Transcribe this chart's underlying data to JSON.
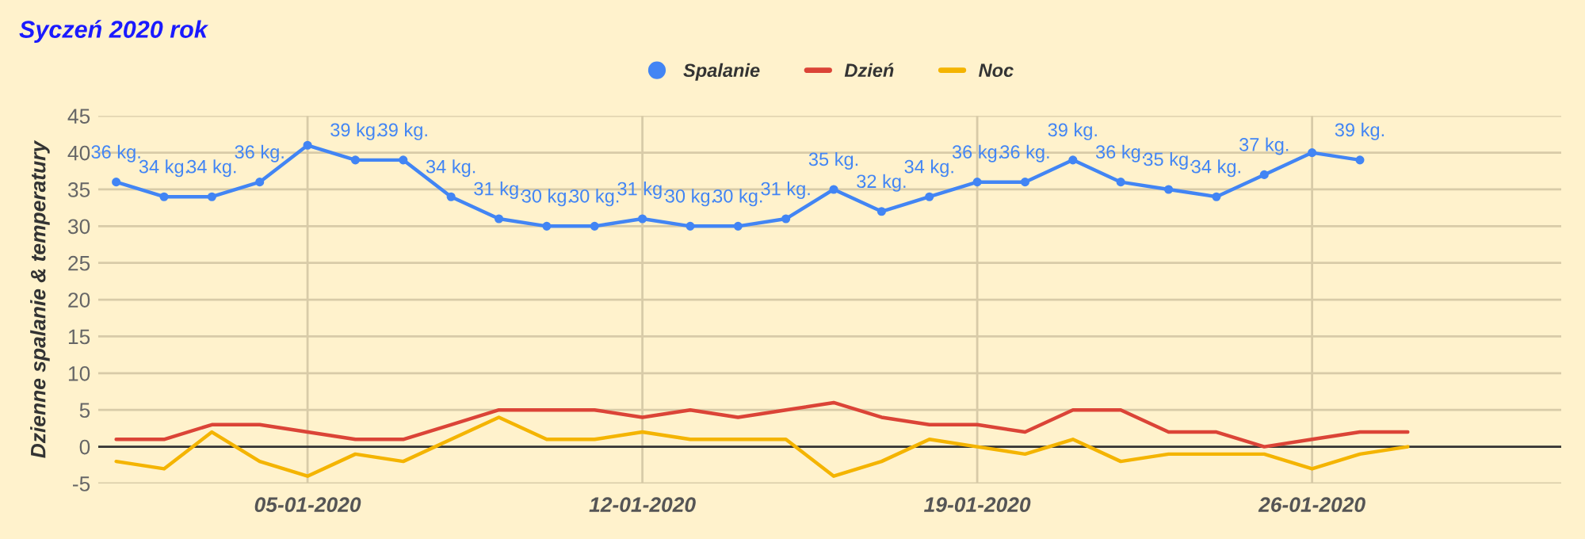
{
  "chart_data": {
    "type": "line",
    "title": "Syczeń 2020 rok",
    "ylabel": "Dzienne spalanie & temperatury",
    "x": [
      "2020-01-01",
      "2020-01-02",
      "2020-01-03",
      "2020-01-04",
      "2020-01-05",
      "2020-01-06",
      "2020-01-07",
      "2020-01-08",
      "2020-01-09",
      "2020-01-10",
      "2020-01-11",
      "2020-01-12",
      "2020-01-13",
      "2020-01-14",
      "2020-01-15",
      "2020-01-16",
      "2020-01-17",
      "2020-01-18",
      "2020-01-19",
      "2020-01-20",
      "2020-01-21",
      "2020-01-22",
      "2020-01-23",
      "2020-01-24",
      "2020-01-25",
      "2020-01-26",
      "2020-01-27",
      "2020-01-28"
    ],
    "series": [
      {
        "name": "Spalanie",
        "color": "#4285f4",
        "marker": "circle",
        "values": [
          36,
          34,
          34,
          36,
          41,
          39,
          39,
          34,
          31,
          30,
          30,
          31,
          30,
          30,
          31,
          35,
          32,
          34,
          36,
          36,
          39,
          36,
          35,
          34,
          37,
          40,
          39,
          null
        ],
        "value_labels": [
          "36 kg.",
          "34 kg.",
          "34 kg.",
          "36 kg.",
          null,
          "39 kg.",
          "39 kg.",
          "34 kg.",
          "31 kg.",
          "30 kg.",
          "30 kg.",
          "31 kg.",
          "30 kg.",
          "30 kg.",
          "31 kg.",
          "35 kg.",
          "32 kg.",
          "34 kg.",
          "36 kg.",
          "36 kg.",
          "39 kg.",
          "36 kg.",
          "35 kg.",
          "34 kg.",
          "37 kg.",
          null,
          "39 kg.",
          null
        ]
      },
      {
        "name": "Dzień",
        "color": "#db4437",
        "values": [
          1,
          1,
          3,
          3,
          2,
          1,
          1,
          3,
          5,
          5,
          5,
          4,
          5,
          4,
          5,
          6,
          4,
          3,
          3,
          2,
          5,
          5,
          2,
          2,
          0,
          1,
          2,
          2
        ]
      },
      {
        "name": "Noc",
        "color": "#f4b400",
        "values": [
          -2,
          -3,
          2,
          -2,
          -4,
          -1,
          -2,
          1,
          4,
          1,
          1,
          2,
          1,
          1,
          1,
          -4,
          -2,
          1,
          0,
          -1,
          1,
          -2,
          -1,
          -1,
          -1,
          -3,
          -1,
          0
        ]
      }
    ],
    "xlim": [
      "2019-12-31T15:00",
      "2020-01-31T05:00"
    ],
    "xticks": [
      {
        "value": "2020-01-05",
        "label": "05-01-2020"
      },
      {
        "value": "2020-01-12",
        "label": "12-01-2020"
      },
      {
        "value": "2020-01-19",
        "label": "19-01-2020"
      },
      {
        "value": "2020-01-26",
        "label": "26-01-2020"
      }
    ],
    "ylim": [
      -5,
      45
    ],
    "yticks": [
      -5,
      0,
      5,
      10,
      15,
      20,
      25,
      30,
      35,
      40,
      45
    ],
    "ref_lines": [
      {
        "axis": "y",
        "value": 0,
        "color": "#333333"
      }
    ],
    "grid": true,
    "legend": "top",
    "line_style": "solid"
  }
}
